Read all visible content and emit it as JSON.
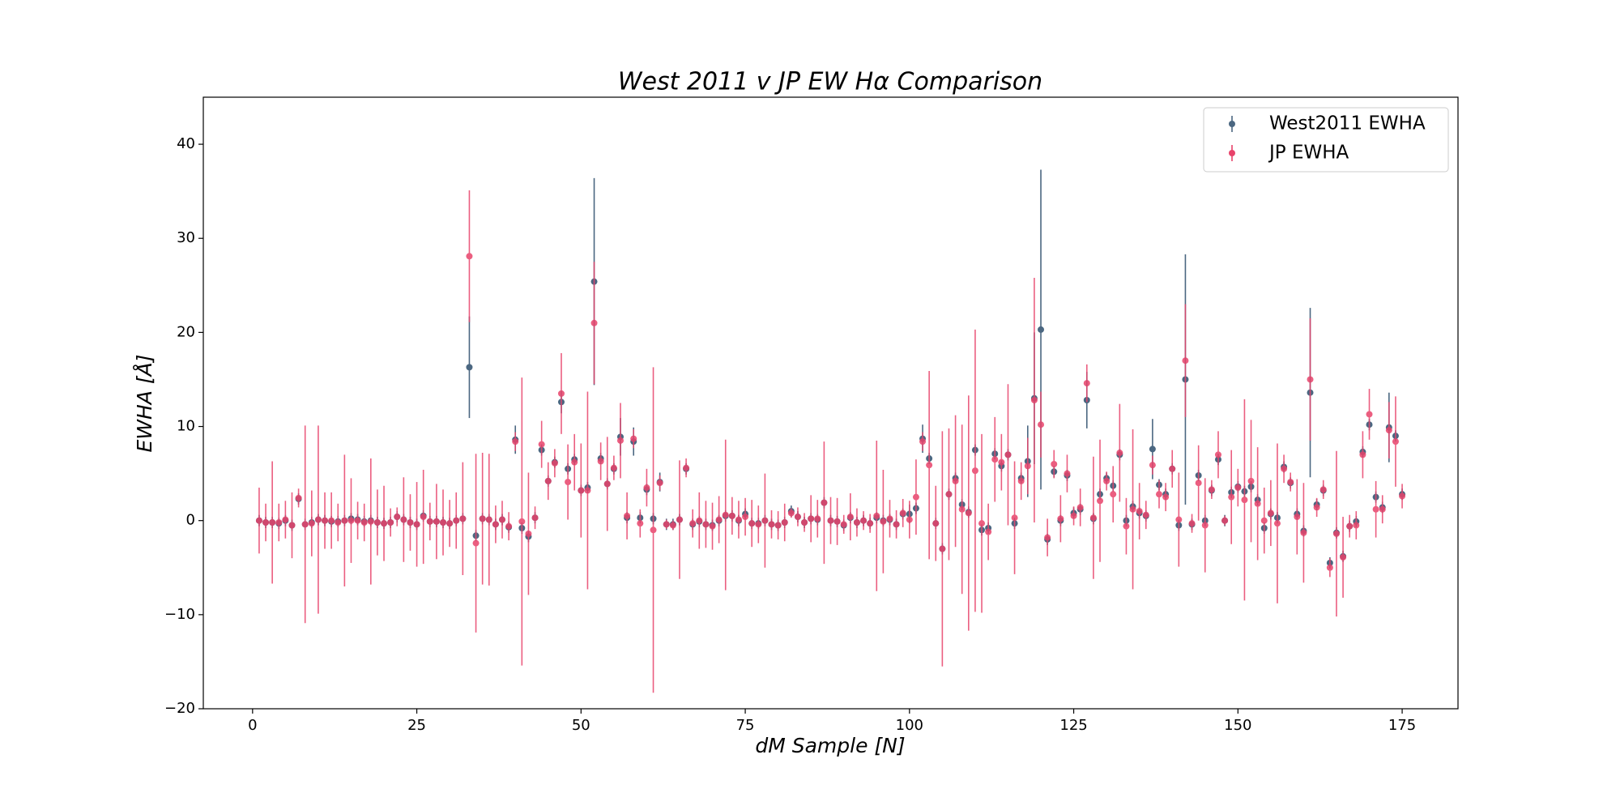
{
  "chart_data": {
    "type": "errorbar",
    "title": "West 2011 v JP EW Hα Comparison",
    "xlabel": "dM Sample [N]",
    "ylabel": "EWHA [Å]",
    "xlim": [
      -7.5,
      183.5
    ],
    "ylim": [
      -20,
      45
    ],
    "xticks": [
      0,
      25,
      50,
      75,
      100,
      125,
      150,
      175
    ],
    "yticks": [
      {
        "value": -20,
        "label": "−20"
      },
      {
        "value": -10,
        "label": "−10"
      },
      0,
      10,
      20,
      30,
      40
    ],
    "legend": "upper right",
    "x": [
      1,
      2,
      3,
      4,
      5,
      6,
      7,
      8,
      9,
      10,
      11,
      12,
      13,
      14,
      15,
      16,
      17,
      18,
      19,
      20,
      21,
      22,
      23,
      24,
      25,
      26,
      27,
      28,
      29,
      30,
      31,
      32,
      33,
      34,
      35,
      36,
      37,
      38,
      39,
      40,
      41,
      42,
      43,
      44,
      45,
      46,
      47,
      48,
      49,
      50,
      51,
      52,
      53,
      54,
      55,
      56,
      57,
      58,
      59,
      60,
      61,
      62,
      63,
      64,
      65,
      66,
      67,
      68,
      69,
      70,
      71,
      72,
      73,
      74,
      75,
      76,
      77,
      78,
      79,
      80,
      81,
      82,
      83,
      84,
      85,
      86,
      87,
      88,
      89,
      90,
      91,
      92,
      93,
      94,
      95,
      96,
      97,
      98,
      99,
      100,
      101,
      102,
      103,
      104,
      105,
      106,
      107,
      108,
      109,
      110,
      111,
      112,
      113,
      114,
      115,
      116,
      117,
      118,
      119,
      120,
      121,
      122,
      123,
      124,
      125,
      126,
      127,
      128,
      129,
      130,
      131,
      132,
      133,
      134,
      135,
      136,
      137,
      138,
      139,
      140,
      141,
      142,
      143,
      144,
      145,
      146,
      147,
      148,
      149,
      150,
      151,
      152,
      153,
      154,
      155,
      156,
      157,
      158,
      159,
      160,
      161,
      162,
      163,
      164,
      165,
      166,
      167,
      168,
      169,
      170,
      171,
      172,
      173,
      174,
      175
    ],
    "series": [
      {
        "name": "West2011 EWHA",
        "color": "#4b6781",
        "values": [
          0,
          -0.2,
          -0.2,
          -0.3,
          0,
          -0.5,
          2.3,
          -0.4,
          -0.2,
          0.1,
          0,
          -0.1,
          -0.1,
          0,
          0.2,
          0.1,
          -0.1,
          0,
          -0.2,
          -0.3,
          -0.2,
          0.4,
          0.1,
          -0.2,
          -0.4,
          0.5,
          -0.1,
          -0.1,
          -0.2,
          -0.3,
          0,
          0.2,
          16.3,
          -1.6,
          0.2,
          0.1,
          -0.4,
          0.1,
          -0.7,
          8.6,
          -0.8,
          -1.7,
          0.3,
          7.5,
          4.2,
          6.2,
          12.6,
          5.5,
          6.5,
          3.2,
          3.5,
          25.4,
          6.6,
          3.9,
          5.5,
          8.9,
          0.3,
          8.4,
          0.3,
          3.3,
          0.2,
          4.1,
          -0.4,
          -0.4,
          0.1,
          5.5,
          -0.4,
          -0.1,
          -0.4,
          -0.5,
          0,
          0.5,
          0.5,
          0,
          0.7,
          -0.3,
          -0.3,
          0,
          -0.4,
          -0.5,
          -0.2,
          1,
          0.4,
          -0.2,
          0.2,
          0.1,
          1.9,
          0,
          -0.1,
          -0.5,
          0.3,
          -0.2,
          0,
          -0.3,
          0.3,
          0,
          0.1,
          -0.4,
          0.7,
          0.7,
          1.3,
          8.7,
          6.6,
          -0.3,
          -3,
          2.8,
          4.5,
          1.7,
          0.9,
          7.5,
          -1,
          -0.8,
          7.1,
          5.8,
          7,
          -0.3,
          4.5,
          6.3,
          13,
          20.3,
          -2,
          5.2,
          0,
          4.8,
          0.8,
          1.2,
          12.8,
          0.2,
          2.8,
          4.5,
          3.7,
          7,
          0,
          1.5,
          0.8,
          0.5,
          7.6,
          3.8,
          2.8,
          5.5,
          -0.5,
          15,
          -0.4,
          4.8,
          0,
          3.2,
          6.5,
          0,
          3,
          3.6,
          3.1,
          3.6,
          2.2,
          -0.8,
          0.7,
          0.3,
          5.7,
          4,
          0.7,
          -1.1,
          13.6,
          1.7,
          3.2,
          -4.5,
          -1.3,
          -3.8,
          -0.6,
          -0.1,
          7.3,
          10.2,
          2.5,
          1.4,
          9.9,
          9,
          2.8
        ],
        "errors": [
          0.6,
          0.6,
          0.6,
          0.6,
          0.6,
          0.6,
          0.6,
          0.6,
          0.6,
          0.6,
          0.6,
          0.6,
          0.6,
          0.6,
          0.6,
          0.6,
          0.6,
          0.6,
          0.6,
          0.6,
          0.6,
          0.6,
          0.6,
          0.6,
          0.6,
          0.6,
          0.6,
          0.6,
          0.6,
          0.6,
          0.6,
          0.6,
          5.4,
          0.6,
          0.6,
          0.6,
          0.6,
          0.6,
          0.6,
          1.5,
          0.6,
          0.6,
          0.6,
          0.6,
          0.6,
          0.6,
          1.2,
          0.6,
          0.6,
          0.6,
          0.6,
          11,
          0.6,
          0.6,
          0.6,
          2,
          0.6,
          1.5,
          0.6,
          0.6,
          0.6,
          1,
          0.6,
          0.6,
          0.6,
          0.6,
          0.6,
          0.6,
          0.6,
          0.6,
          0.6,
          0.6,
          0.6,
          0.6,
          0.6,
          0.6,
          0.6,
          0.6,
          0.6,
          0.6,
          0.6,
          0.6,
          0.6,
          0.6,
          0.6,
          0.6,
          0.6,
          0.6,
          0.6,
          0.6,
          0.6,
          0.6,
          0.6,
          0.6,
          0.6,
          0.6,
          0.6,
          0.6,
          0.6,
          1,
          0.6,
          1.5,
          0.6,
          0.6,
          0.6,
          0.6,
          0.6,
          0.6,
          0.6,
          0.6,
          0.6,
          0.6,
          0.6,
          0.6,
          0.6,
          0.6,
          0.6,
          3.8,
          7,
          17,
          0.6,
          0.6,
          0.6,
          0.6,
          0.6,
          0.6,
          3,
          0.6,
          0.6,
          0.6,
          0.6,
          0.6,
          0.6,
          0.6,
          0.6,
          0.6,
          3.2,
          0.6,
          0.6,
          0.6,
          0.6,
          13.3,
          0.6,
          0.6,
          0.6,
          0.6,
          0.6,
          0.6,
          0.6,
          0.6,
          0.6,
          0.6,
          0.6,
          0.6,
          0.6,
          0.6,
          0.6,
          0.6,
          0.6,
          0.6,
          9,
          0.6,
          0.6,
          0.6,
          0.6,
          0.6,
          0.6,
          0.6,
          0.6,
          0.6,
          0.6,
          0.6,
          3.7,
          0.6,
          0.6
        ]
      },
      {
        "name": "JP EWHA",
        "color": "#e8436b",
        "values": [
          0,
          -0.2,
          -0.2,
          -0.2,
          0.1,
          -0.5,
          2.4,
          -0.4,
          -0.3,
          0.1,
          0,
          0,
          -0.2,
          0,
          0,
          0,
          -0.2,
          -0.1,
          -0.2,
          -0.3,
          -0.2,
          0.4,
          0.1,
          -0.2,
          -0.4,
          0.4,
          -0.1,
          -0.1,
          -0.2,
          -0.3,
          0,
          0.2,
          28.1,
          -2.4,
          0.2,
          0.1,
          -0.4,
          0.1,
          -0.6,
          8.4,
          -0.1,
          -1.4,
          0.3,
          8.1,
          4.2,
          6.1,
          13.5,
          4.1,
          6.2,
          3.2,
          3.2,
          21,
          6.3,
          3.9,
          5.6,
          8.5,
          0.5,
          8.7,
          -0.3,
          3.5,
          -1,
          4,
          -0.4,
          -0.5,
          0.1,
          5.6,
          -0.3,
          0,
          -0.4,
          -0.6,
          0.1,
          0.6,
          0.5,
          0.1,
          0.4,
          -0.3,
          -0.4,
          0,
          -0.4,
          -0.5,
          -0.2,
          0.8,
          0.4,
          -0.2,
          0.2,
          0.2,
          1.9,
          0,
          -0.1,
          -0.4,
          0.4,
          -0.2,
          0,
          -0.3,
          0.5,
          -0.1,
          0.2,
          -0.4,
          0.8,
          0.1,
          2.5,
          8.4,
          5.9,
          -0.3,
          -3,
          2.8,
          4.2,
          1.2,
          0.8,
          5.3,
          -0.3,
          -1.2,
          6.5,
          6.2,
          7,
          0.3,
          4.2,
          5.8,
          12.8,
          10.2,
          -1.8,
          6,
          0.2,
          5,
          0.5,
          1.4,
          14.6,
          0.3,
          2.1,
          4.2,
          2.8,
          7.2,
          -0.6,
          1.2,
          1,
          0.6,
          5.9,
          2.8,
          2.5,
          5.5,
          0.1,
          17,
          -0.3,
          4,
          -0.5,
          3.3,
          7,
          0,
          2.5,
          3.5,
          2.2,
          4.2,
          1.8,
          0,
          0.8,
          -0.3,
          5.5,
          4.1,
          0.4,
          -1.3,
          15,
          1.4,
          3.3,
          -5,
          -1.4,
          -3.9,
          -0.6,
          -0.5,
          7,
          11.3,
          1.2,
          1.2,
          9.6,
          8.4,
          2.6
        ],
        "errors": [
          3.5,
          2,
          6.5,
          2,
          2,
          3.5,
          1,
          10.5,
          3.5,
          10,
          3,
          3,
          2,
          7,
          4.5,
          2,
          2,
          6.7,
          3.5,
          4,
          1.5,
          1,
          4.5,
          3,
          4.5,
          5,
          2,
          4,
          3.5,
          2.5,
          3,
          6,
          7,
          9.5,
          7,
          7,
          2,
          2,
          1.5,
          1,
          15.3,
          6.5,
          1.2,
          2.5,
          2,
          1.5,
          4.3,
          4,
          3,
          5,
          10.5,
          6.5,
          2,
          5,
          1.3,
          4,
          2.5,
          1,
          1.5,
          2,
          17.3,
          0.8,
          0.5,
          0.5,
          6.3,
          1,
          1.5,
          3,
          2.5,
          2.5,
          2.5,
          8,
          2,
          2,
          2,
          2.5,
          2,
          5,
          1.5,
          1.5,
          2,
          0.5,
          1,
          1,
          2.5,
          2,
          6.5,
          2.5,
          2.5,
          1,
          2.5,
          1.5,
          1,
          1,
          8,
          5.5,
          2,
          1.5,
          1.5,
          2,
          4,
          1,
          10,
          4,
          12.5,
          7,
          7,
          9,
          12.5,
          15,
          9.5,
          3,
          4.5,
          3,
          7.5,
          6,
          2,
          3,
          13,
          3.5,
          2,
          1.5,
          2.5,
          2,
          1,
          2,
          2,
          6.5,
          6.5,
          1,
          3,
          5.2,
          3,
          8.5,
          3,
          1.5,
          1,
          1.5,
          1.5,
          2,
          5,
          6,
          1,
          4,
          5,
          1,
          2.5,
          0.5,
          5,
          2,
          10.7,
          6.5,
          6,
          3.5,
          3.5,
          8.5,
          1.5,
          1,
          4,
          5.3,
          6.5,
          1,
          1,
          1,
          8.8,
          4.3,
          1.2,
          1.5,
          2.5,
          2.7,
          3,
          1.5,
          3,
          4.8,
          1.3
        ]
      }
    ]
  }
}
